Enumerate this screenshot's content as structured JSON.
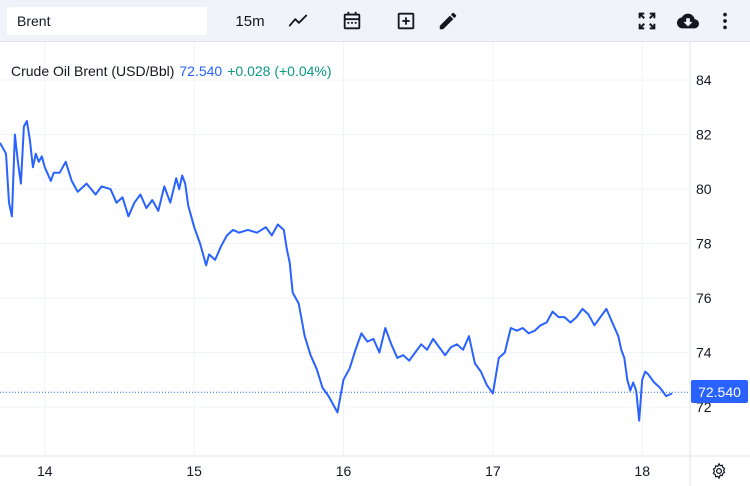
{
  "toolbar": {
    "symbol_value": "Brent",
    "interval_label": "15m",
    "icons": [
      "line-chart-icon",
      "calendar-icon",
      "add-box-icon",
      "pencil-icon",
      "fullscreen-icon",
      "cloud-download-icon",
      "more-vertical-icon"
    ]
  },
  "legend": {
    "title": "Crude Oil Brent (USD/Bbl)",
    "price": "72.540",
    "change": "+0.028 (+0.04%)"
  },
  "last_price_badge": "72.540",
  "colors": {
    "line": "#2962ff",
    "positive": "#089981",
    "badge": "#2962ff",
    "toolbar_bg": "#f0f3fa",
    "grid": "#f0f3fa"
  },
  "chart_data": {
    "type": "line",
    "title": "Crude Oil Brent (USD/Bbl)",
    "xlabel": "",
    "ylabel": "",
    "x_tick_labels": [
      "14",
      "15",
      "16",
      "17",
      "18"
    ],
    "y_tick_labels": [
      "72",
      "74",
      "76",
      "78",
      "80",
      "82",
      "84"
    ],
    "ylim": [
      70.2,
      85.4
    ],
    "xlim": [
      13.7,
      18.32
    ],
    "grid": true,
    "series": [
      {
        "name": "",
        "x": [
          13.7,
          13.74,
          13.76,
          13.78,
          13.8,
          13.82,
          13.84,
          13.86,
          13.88,
          13.9,
          13.92,
          13.94,
          13.96,
          13.98,
          14.0,
          14.04,
          14.06,
          14.1,
          14.14,
          14.18,
          14.22,
          14.28,
          14.34,
          14.38,
          14.44,
          14.48,
          14.52,
          14.56,
          14.6,
          14.64,
          14.68,
          14.72,
          14.76,
          14.8,
          14.84,
          14.88,
          14.9,
          14.92,
          14.94,
          14.96,
          14.98,
          15.0,
          15.04,
          15.08,
          15.1,
          15.14,
          15.18,
          15.22,
          15.26,
          15.3,
          15.36,
          15.42,
          15.48,
          15.52,
          15.56,
          15.6,
          15.62,
          15.64,
          15.66,
          15.7,
          15.74,
          15.78,
          15.82,
          15.86,
          15.9,
          15.94,
          15.96,
          15.98,
          16.0,
          16.04,
          16.08,
          16.12,
          16.16,
          16.2,
          16.24,
          16.28,
          16.32,
          16.36,
          16.4,
          16.44,
          16.48,
          16.52,
          16.56,
          16.6,
          16.64,
          16.68,
          16.72,
          16.76,
          16.8,
          16.84,
          16.88,
          16.92,
          16.96,
          17.0,
          17.04,
          17.08,
          17.12,
          17.16,
          17.2,
          17.24,
          17.28,
          17.32,
          17.36,
          17.4,
          17.44,
          17.48,
          17.52,
          17.56,
          17.6,
          17.64,
          17.68,
          17.72,
          17.76,
          17.8,
          17.84,
          17.86,
          17.88,
          17.9,
          17.92,
          17.94,
          17.96,
          17.98,
          18.0,
          18.02,
          18.04,
          18.08,
          18.12,
          18.16,
          18.2
        ],
        "values": [
          81.7,
          81.3,
          79.5,
          79.0,
          82.0,
          81.0,
          80.2,
          82.3,
          82.5,
          81.8,
          80.8,
          81.3,
          81.0,
          81.2,
          80.8,
          80.3,
          80.6,
          80.6,
          81.0,
          80.3,
          79.9,
          80.2,
          79.8,
          80.1,
          80.0,
          79.5,
          79.7,
          79.0,
          79.5,
          79.8,
          79.3,
          79.6,
          79.2,
          80.1,
          79.5,
          80.4,
          80.0,
          80.5,
          80.2,
          79.4,
          79.0,
          78.6,
          78.0,
          77.2,
          77.6,
          77.4,
          77.9,
          78.3,
          78.5,
          78.4,
          78.5,
          78.4,
          78.6,
          78.3,
          78.7,
          78.5,
          77.8,
          77.3,
          76.2,
          75.8,
          74.6,
          73.9,
          73.4,
          72.7,
          72.4,
          72.0,
          71.8,
          72.4,
          73.0,
          73.4,
          74.1,
          74.7,
          74.4,
          74.5,
          74.0,
          74.9,
          74.3,
          73.8,
          73.9,
          73.7,
          74.0,
          74.3,
          74.1,
          74.5,
          74.2,
          73.9,
          74.2,
          74.3,
          74.1,
          74.6,
          73.6,
          73.3,
          72.8,
          72.5,
          73.8,
          74.0,
          74.9,
          74.8,
          74.9,
          74.7,
          74.8,
          75.0,
          75.1,
          75.5,
          75.3,
          75.3,
          75.1,
          75.3,
          75.6,
          75.4,
          75.0,
          75.3,
          75.6,
          75.1,
          74.6,
          74.1,
          73.8,
          73.0,
          72.6,
          72.9,
          72.6,
          71.5,
          73.0,
          73.3,
          73.2,
          72.9,
          72.7,
          72.4,
          72.5
        ]
      }
    ]
  }
}
